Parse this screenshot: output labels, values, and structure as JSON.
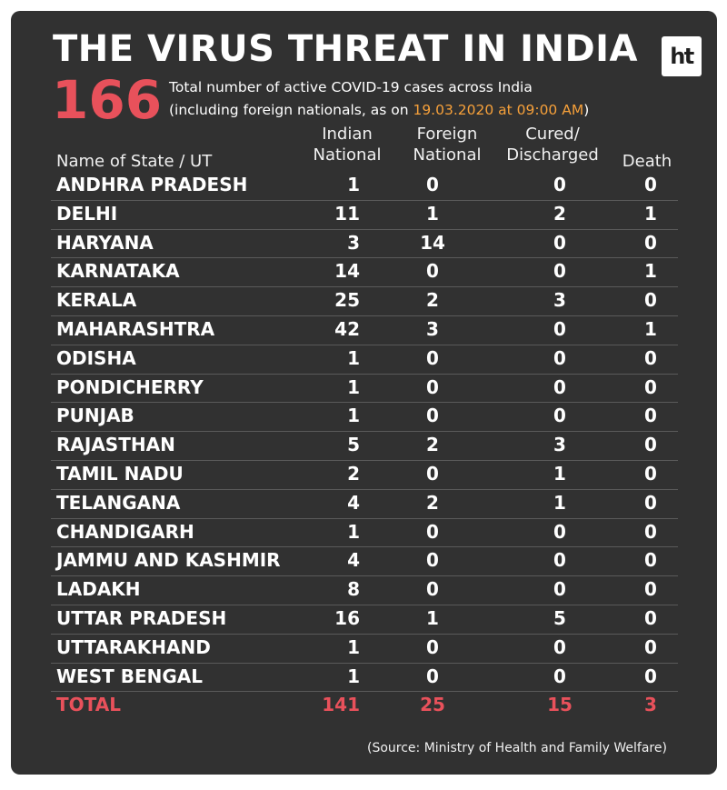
{
  "header": {
    "title": "THE VIRUS THREAT IN INDIA",
    "logo_text": "ht",
    "big_number": "166",
    "subtitle_line1": "Total number of active COVID-19 cases across India",
    "subtitle_line2_pre": "(including foreign nationals, as on ",
    "subtitle_date": "19.03.2020 at 09:00 AM",
    "subtitle_line2_post": ")"
  },
  "colors": {
    "background": "#313131",
    "accent_red": "#e8515b",
    "accent_orange": "#f6a03a",
    "text": "#ffffff"
  },
  "chart_data": {
    "type": "table",
    "title": "THE VIRUS THREAT IN INDIA",
    "columns": [
      "Name of State / UT",
      "Indian National",
      "Foreign National",
      "Cured/ Discharged",
      "Death"
    ],
    "column_headers": [
      {
        "line1": "Name of State / UT",
        "line2": ""
      },
      {
        "line1": "Indian",
        "line2": "National"
      },
      {
        "line1": "Foreign",
        "line2": "National"
      },
      {
        "line1": "Cured/",
        "line2": "Discharged"
      },
      {
        "line1": "Death",
        "line2": ""
      }
    ],
    "rows": [
      [
        "ANDHRA PRADESH",
        "1",
        "0",
        "0",
        "0"
      ],
      [
        "DELHI",
        "11",
        "1",
        "2",
        "1"
      ],
      [
        "HARYANA",
        "3",
        "14",
        "0",
        "0"
      ],
      [
        "KARNATAKA",
        "14",
        "0",
        "0",
        "1"
      ],
      [
        "KERALA",
        "25",
        "2",
        "3",
        "0"
      ],
      [
        "MAHARASHTRA",
        "42",
        "3",
        "0",
        "1"
      ],
      [
        "ODISHA",
        "1",
        "0",
        "0",
        "0"
      ],
      [
        "PONDICHERRY",
        "1",
        "0",
        "0",
        "0"
      ],
      [
        "PUNJAB",
        "1",
        "0",
        "0",
        "0"
      ],
      [
        "RAJASTHAN",
        "5",
        "2",
        "3",
        "0"
      ],
      [
        "TAMIL NADU",
        "2",
        "0",
        "1",
        "0"
      ],
      [
        "TELANGANA",
        "4",
        "2",
        "1",
        "0"
      ],
      [
        "CHANDIGARH",
        "1",
        "0",
        "0",
        "0"
      ],
      [
        "JAMMU AND KASHMIR",
        "4",
        "0",
        "0",
        "0"
      ],
      [
        "LADAKH",
        "8",
        "0",
        "0",
        "0"
      ],
      [
        "UTTAR PRADESH",
        "16",
        "1",
        "5",
        "0"
      ],
      [
        "UTTARAKHAND",
        "1",
        "0",
        "0",
        "0"
      ],
      [
        "WEST BENGAL",
        "1",
        "0",
        "0",
        "0"
      ]
    ],
    "total": [
      "TOTAL",
      "141",
      "25",
      "15",
      "3"
    ]
  },
  "footer": {
    "source": "(Source: Ministry of Health and Family Welfare)"
  }
}
